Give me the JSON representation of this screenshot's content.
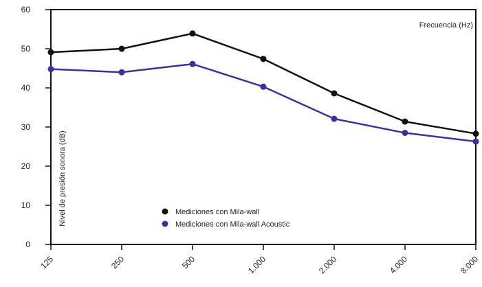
{
  "chart_data": {
    "type": "line",
    "title": "",
    "xlabel": "Frecuencia (Hz)",
    "ylabel": "Nivel de presión sonora (dB)",
    "categories": [
      "125",
      "250",
      "500",
      "1.000",
      "2.000",
      "4.000",
      "8.000"
    ],
    "ylim": [
      0,
      60
    ],
    "yticks": [
      "0",
      "10",
      "20",
      "30",
      "40",
      "50",
      "60"
    ],
    "grid": false,
    "legend_position": "bottom-left",
    "series": [
      {
        "name": "Mediciones con Mila-wall",
        "color": "#111111",
        "values": [
          49.1,
          50.0,
          53.9,
          47.4,
          38.6,
          31.4,
          28.3
        ]
      },
      {
        "name": "Mediciones con Mila-wall Acoustic",
        "color": "#3f2ea0",
        "values": [
          44.8,
          44.0,
          46.1,
          40.3,
          32.1,
          28.5,
          26.3
        ]
      }
    ]
  }
}
